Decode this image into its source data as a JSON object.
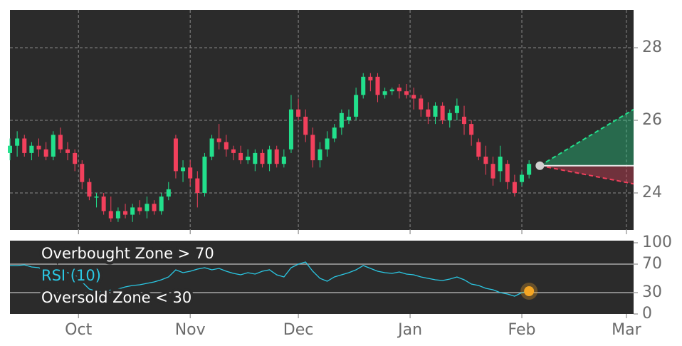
{
  "chart_data": [
    {
      "type": "candlestick",
      "x": [
        -19,
        -17,
        -15,
        -13,
        -11,
        -9,
        -7,
        -5,
        -3,
        -1,
        1,
        3,
        5,
        7,
        9,
        11,
        13,
        15,
        17,
        19,
        21,
        23,
        25,
        27,
        29,
        31,
        33,
        35,
        37,
        39,
        41,
        43,
        45,
        47,
        49,
        51,
        53,
        55,
        57,
        59,
        61,
        63,
        65,
        67,
        69,
        71,
        73,
        75,
        77,
        79,
        81,
        83,
        85,
        87,
        89,
        91,
        93,
        95,
        97,
        99,
        101,
        103,
        105,
        107,
        109,
        111,
        113,
        115,
        117,
        119,
        121,
        123,
        125
      ],
      "open": [
        25.1,
        25.3,
        25.5,
        25.1,
        25.3,
        25.2,
        25.0,
        25.6,
        25.2,
        25.1,
        24.8,
        24.3,
        23.9,
        23.9,
        23.5,
        23.3,
        23.5,
        23.4,
        23.6,
        23.5,
        23.7,
        23.5,
        23.9,
        25.5,
        24.6,
        24.7,
        24.4,
        24.0,
        25.0,
        25.5,
        25.4,
        25.2,
        25.1,
        24.9,
        24.8,
        25.1,
        24.8,
        25.2,
        24.8,
        25.2,
        26.3,
        26.1,
        25.6,
        24.9,
        25.2,
        25.5,
        25.8,
        26.0,
        26.1,
        26.7,
        27.2,
        27.2,
        26.7,
        26.8,
        26.9,
        26.8,
        26.7,
        26.6,
        26.3,
        26.1,
        26.4,
        26.0,
        26.2,
        26.1,
        25.9,
        25.4,
        25.0,
        24.8,
        24.6,
        24.8,
        24.3,
        24.3,
        24.5
      ],
      "high": [
        25.5,
        25.7,
        25.6,
        25.4,
        25.5,
        25.4,
        25.7,
        25.8,
        25.4,
        25.2,
        24.9,
        24.4,
        24.0,
        24.0,
        23.9,
        23.6,
        23.7,
        23.7,
        23.8,
        23.9,
        23.8,
        24.0,
        24.3,
        25.6,
        24.9,
        24.9,
        24.6,
        25.1,
        25.6,
        25.9,
        25.6,
        25.3,
        25.3,
        25.2,
        25.2,
        25.2,
        25.3,
        25.3,
        25.2,
        26.7,
        26.6,
        26.3,
        25.8,
        25.4,
        25.7,
        25.9,
        26.3,
        26.3,
        26.9,
        27.3,
        27.3,
        27.3,
        26.9,
        26.9,
        27.0,
        27.0,
        26.9,
        26.7,
        26.5,
        26.5,
        26.5,
        26.3,
        26.6,
        26.4,
        26.0,
        25.5,
        25.3,
        25.0,
        25.3,
        24.9,
        24.5,
        24.6,
        24.9
      ],
      "low": [
        24.9,
        25.0,
        25.0,
        24.9,
        25.0,
        24.9,
        24.9,
        25.1,
        24.9,
        24.6,
        24.1,
        23.8,
        23.6,
        23.4,
        23.2,
        23.2,
        23.3,
        23.2,
        23.4,
        23.3,
        23.4,
        23.4,
        23.8,
        24.4,
        24.3,
        24.2,
        23.6,
        23.9,
        24.9,
        25.2,
        25.0,
        24.9,
        24.8,
        24.8,
        24.6,
        24.7,
        24.6,
        24.7,
        24.7,
        25.1,
        26.0,
        25.4,
        24.7,
        24.7,
        25.0,
        25.4,
        25.6,
        25.9,
        26.0,
        26.6,
        26.8,
        26.5,
        26.6,
        26.7,
        26.6,
        26.6,
        26.3,
        26.1,
        25.9,
        25.9,
        25.9,
        25.8,
        26.0,
        25.6,
        25.3,
        24.9,
        24.5,
        24.2,
        24.3,
        24.1,
        23.9,
        24.2,
        24.4
      ],
      "close": [
        25.3,
        25.5,
        25.1,
        25.3,
        25.2,
        25.0,
        25.6,
        25.2,
        25.1,
        24.8,
        24.3,
        23.9,
        23.9,
        23.5,
        23.3,
        23.5,
        23.4,
        23.6,
        23.5,
        23.7,
        23.5,
        23.9,
        24.1,
        24.6,
        24.7,
        24.4,
        24.0,
        25.0,
        25.5,
        25.4,
        25.2,
        25.1,
        24.9,
        25.0,
        25.1,
        24.8,
        25.2,
        24.8,
        25.0,
        26.3,
        26.1,
        25.6,
        24.9,
        25.2,
        25.5,
        25.8,
        26.2,
        26.1,
        26.7,
        27.2,
        27.1,
        26.7,
        26.8,
        26.85,
        26.8,
        26.7,
        26.6,
        26.3,
        26.1,
        26.4,
        26.0,
        26.2,
        26.4,
        25.9,
        25.6,
        25.0,
        24.8,
        24.4,
        25.0,
        24.3,
        24.0,
        24.5,
        24.8
      ],
      "up_color": "#22e08c",
      "down_color": "#f2405c",
      "xlim": [
        -19,
        154
      ],
      "ylim": [
        22.98,
        29.04
      ],
      "yticks": [
        24,
        26,
        28
      ],
      "grid": true,
      "projection": {
        "x": [
          128,
          154
        ],
        "upper": [
          24.75,
          26.3
        ],
        "last": [
          24.75,
          24.75
        ],
        "lower": [
          24.75,
          24.25
        ]
      }
    },
    {
      "type": "line",
      "x": [
        -19,
        -17,
        -15,
        -13,
        -11,
        -9,
        -7,
        -5,
        -3,
        -1,
        1,
        3,
        5,
        7,
        9,
        11,
        13,
        15,
        17,
        19,
        21,
        23,
        25,
        27,
        29,
        31,
        33,
        35,
        37,
        39,
        41,
        43,
        45,
        47,
        49,
        51,
        53,
        55,
        57,
        59,
        61,
        63,
        65,
        67,
        69,
        71,
        73,
        75,
        77,
        79,
        81,
        83,
        85,
        87,
        89,
        91,
        93,
        95,
        97,
        99,
        101,
        103,
        105,
        107,
        109,
        111,
        113,
        115,
        117,
        119,
        121,
        123,
        125
      ],
      "series": [
        {
          "name": "RSI (10)",
          "color": "#2ac8e4",
          "values": [
            68,
            68,
            69,
            66,
            65,
            60,
            61,
            60,
            58,
            55,
            45,
            35,
            32,
            30,
            34,
            35,
            38,
            40,
            41,
            43,
            45,
            48,
            52,
            62,
            58,
            60,
            63,
            65,
            62,
            64,
            60,
            57,
            55,
            58,
            56,
            60,
            62,
            55,
            52,
            65,
            70,
            73,
            60,
            50,
            46,
            52,
            55,
            58,
            62,
            68,
            64,
            60,
            58,
            57,
            59,
            56,
            55,
            52,
            50,
            48,
            47,
            49,
            52,
            48,
            42,
            40,
            36,
            34,
            30,
            28,
            25,
            30,
            32
          ]
        }
      ],
      "annotations": [
        "Overbought Zone > 70",
        "Oversold Zone < 30"
      ],
      "reference_lines": [
        70,
        30
      ],
      "xlim": [
        -19,
        154
      ],
      "ylim": [
        0,
        100
      ],
      "yticks": [
        0,
        30,
        70,
        100
      ],
      "xticks": [
        {
          "value": 0,
          "label": "Oct"
        },
        {
          "value": 31,
          "label": "Nov"
        },
        {
          "value": 61,
          "label": "Dec"
        },
        {
          "value": 92,
          "label": "Jan"
        },
        {
          "value": 123,
          "label": "Feb"
        },
        {
          "value": 152,
          "label": "Mar"
        }
      ]
    }
  ]
}
